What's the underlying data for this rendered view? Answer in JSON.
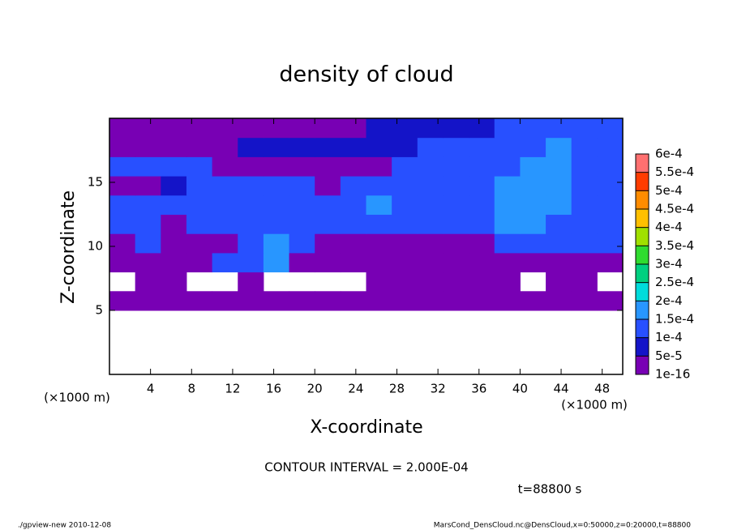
{
  "chart_data": {
    "type": "contour",
    "title": "density of cloud",
    "x_label": "X-coordinate",
    "y_label": "Z-coordinate",
    "x_unit_left": "(×1000 m)",
    "x_unit_right": "(×1000 m)",
    "contour_note": "CONTOUR INTERVAL = 2.000E-04",
    "time_note": "t=88800 s",
    "footer_left": "./gpview-new  2010-12-08",
    "footer_right": "MarsCond_DensCloud.nc@DensCloud,x=0:50000,z=0:20000,t=88800",
    "xlim": [
      0,
      50
    ],
    "ylim": [
      0,
      20
    ],
    "xticks": [
      4,
      8,
      12,
      16,
      20,
      24,
      28,
      32,
      36,
      40,
      44,
      48
    ],
    "yticks": [
      5,
      10,
      15
    ],
    "x_edges": [
      0,
      2.5,
      5,
      7.5,
      10,
      12.5,
      15,
      17.5,
      20,
      22.5,
      25,
      27.5,
      30,
      32.5,
      35,
      37.5,
      40,
      42.5,
      45,
      47.5,
      50
    ],
    "y_edges": [
      5,
      6.5,
      8,
      9.5,
      11,
      12.5,
      14,
      15.5,
      17,
      18.5,
      20
    ],
    "z": [
      [
        2e-05,
        2e-05,
        2e-05,
        2e-05,
        2e-05,
        2e-05,
        2e-05,
        2e-05,
        2e-05,
        2e-05,
        2e-05,
        2e-05,
        2e-05,
        2e-05,
        2e-05,
        2e-05,
        2e-05,
        2e-05,
        2e-05,
        2e-05
      ],
      [
        null,
        2e-05,
        2e-05,
        null,
        null,
        2e-05,
        null,
        null,
        null,
        null,
        2e-05,
        2e-05,
        2e-05,
        2e-05,
        2e-05,
        2e-05,
        null,
        2e-05,
        2e-05,
        null
      ],
      [
        2e-05,
        2e-05,
        2e-05,
        2e-05,
        0.00012,
        0.00012,
        0.00017,
        2e-05,
        2e-05,
        2e-05,
        2e-05,
        2e-05,
        2e-05,
        2e-05,
        2e-05,
        2e-05,
        2e-05,
        2e-05,
        2e-05,
        2e-05
      ],
      [
        2e-05,
        0.00012,
        2e-05,
        2e-05,
        2e-05,
        0.00012,
        0.00017,
        0.00012,
        2e-05,
        2e-05,
        2e-05,
        2e-05,
        2e-05,
        2e-05,
        2e-05,
        0.00012,
        0.00012,
        0.00012,
        0.00012,
        0.00012
      ],
      [
        0.00012,
        0.00012,
        2e-05,
        0.00012,
        0.00012,
        0.00012,
        0.00012,
        0.00012,
        0.00012,
        0.00012,
        0.00012,
        0.00012,
        0.00012,
        0.00012,
        0.00012,
        0.00017,
        0.00017,
        0.00012,
        0.00012,
        0.00012
      ],
      [
        0.00012,
        0.00012,
        0.00012,
        0.00012,
        0.00012,
        0.00012,
        0.00012,
        0.00012,
        0.00012,
        0.00012,
        0.00017,
        0.00012,
        0.00012,
        0.00012,
        0.00012,
        0.00017,
        0.00017,
        0.00017,
        0.00012,
        0.00012
      ],
      [
        2e-05,
        2e-05,
        7e-05,
        0.00012,
        0.00012,
        0.00012,
        0.00012,
        0.00012,
        2e-05,
        0.00012,
        0.00012,
        0.00012,
        0.00012,
        0.00012,
        0.00012,
        0.00017,
        0.00017,
        0.00017,
        0.00012,
        0.00012
      ],
      [
        0.00012,
        0.00012,
        0.00012,
        0.00012,
        2e-05,
        2e-05,
        2e-05,
        2e-05,
        2e-05,
        2e-05,
        2e-05,
        0.00012,
        0.00012,
        0.00012,
        0.00012,
        0.00012,
        0.00017,
        0.00017,
        0.00012,
        0.00012
      ],
      [
        2e-05,
        2e-05,
        2e-05,
        2e-05,
        2e-05,
        7e-05,
        7e-05,
        7e-05,
        7e-05,
        7e-05,
        7e-05,
        7e-05,
        0.00012,
        0.00012,
        0.00012,
        0.00012,
        0.00012,
        0.00017,
        0.00012,
        0.00012
      ],
      [
        2e-05,
        2e-05,
        2e-05,
        2e-05,
        2e-05,
        2e-05,
        2e-05,
        2e-05,
        2e-05,
        2e-05,
        7e-05,
        7e-05,
        7e-05,
        7e-05,
        7e-05,
        0.00012,
        0.00012,
        0.00012,
        0.00012,
        0.00012
      ]
    ],
    "levels": [
      {
        "value": 1e-16,
        "label": "1e-16"
      },
      {
        "value": 5e-05,
        "label": "5e-5"
      },
      {
        "value": 0.0001,
        "label": "1e-4"
      },
      {
        "value": 0.00015,
        "label": "1.5e-4"
      },
      {
        "value": 0.0002,
        "label": "2e-4"
      },
      {
        "value": 0.00025,
        "label": "2.5e-4"
      },
      {
        "value": 0.0003,
        "label": "3e-4"
      },
      {
        "value": 0.00035,
        "label": "3.5e-4"
      },
      {
        "value": 0.0004,
        "label": "4e-4"
      },
      {
        "value": 0.00045,
        "label": "4.5e-4"
      },
      {
        "value": 0.0005,
        "label": "5e-4"
      },
      {
        "value": 0.00055,
        "label": "5.5e-4"
      },
      {
        "value": 0.0006,
        "label": "6e-4"
      }
    ],
    "colors": [
      "#7800b4",
      "#1414c8",
      "#2850ff",
      "#2896ff",
      "#00dcdc",
      "#00d080",
      "#30dc30",
      "#a0e000",
      "#ffc000",
      "#ff8c00",
      "#ff3c00",
      "#ff7070"
    ]
  }
}
